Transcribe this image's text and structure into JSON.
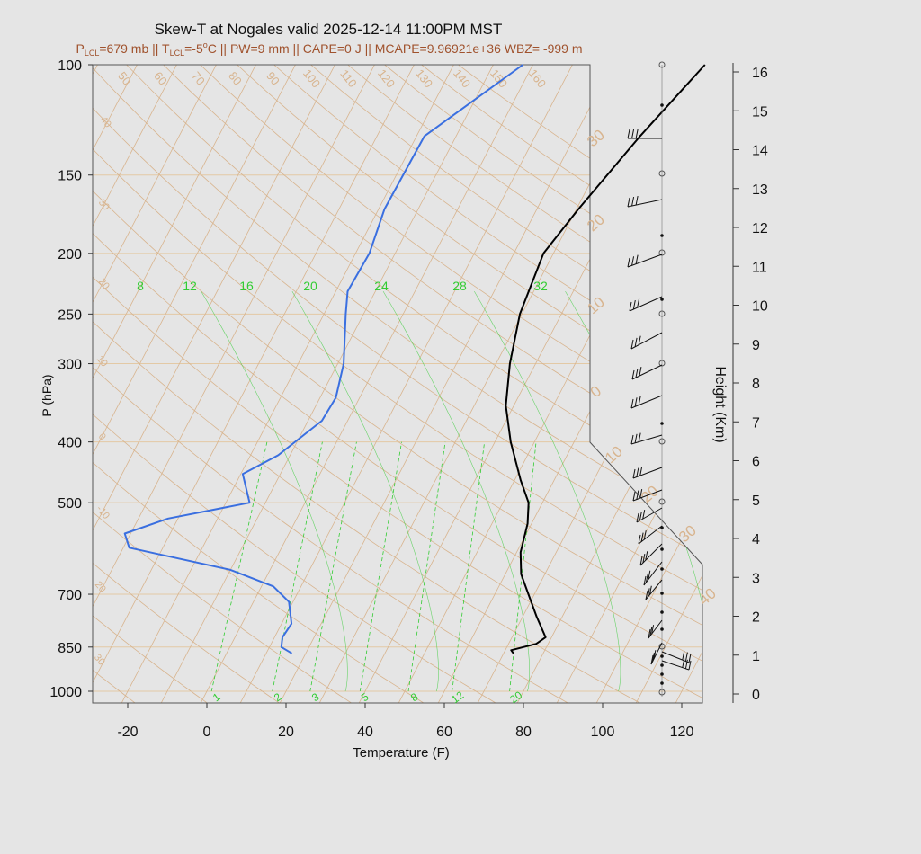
{
  "title": "Skew-T at Nogales valid 2025-12-14 11:00PM MST",
  "subtitle": {
    "lcl_p_label": "P",
    "lcl_p_sub": "LCL",
    "lcl_p_value": "=679 mb",
    "sep1": " || ",
    "lcl_t_label": "T",
    "lcl_t_sub": "LCL",
    "lcl_t_pre": "=-5",
    "lcl_t_sup": "o",
    "lcl_t_post": "C",
    "rest": " || PW=9 mm || CAPE=0 J || MCAPE=9.96921e+36 WBZ= -999 m"
  },
  "colors": {
    "background": "#e5e5e5",
    "subtitle": "#a0522d",
    "temperature": "#000000",
    "dewpoint": "#3a6fe0",
    "mixing_ratio": "#33cc33",
    "isotherm": "#d8b48e",
    "isobar": "#e3c9a5",
    "dry_adiabat": "#d8b48e"
  },
  "chart_data": {
    "type": "line",
    "xlabel": "Temperature (F)",
    "ylabel": "P (hPa)",
    "y2label": "Height (Km)",
    "x_ticks": [
      "-20",
      "0",
      "20",
      "40",
      "60",
      "80",
      "100",
      "120"
    ],
    "p_ticks": [
      "100",
      "150",
      "200",
      "250",
      "300",
      "400",
      "500",
      "700",
      "850",
      "1000"
    ],
    "height_ticks": [
      "0",
      "1",
      "2",
      "3",
      "4",
      "5",
      "6",
      "7",
      "8",
      "9",
      "10",
      "11",
      "12",
      "13",
      "14",
      "15",
      "16"
    ],
    "isotherm_labels": [
      "50",
      "60",
      "70",
      "80",
      "90",
      "100",
      "110",
      "120",
      "130",
      "140",
      "150",
      "160"
    ],
    "adiabat_labels_left": [
      "40",
      "30",
      "20",
      "10",
      "0",
      "-10",
      "20",
      "30"
    ],
    "adiabat_labels_right": [
      "30",
      "20",
      "10",
      "0",
      "10",
      "20",
      "30",
      "40"
    ],
    "mixing_top_labels": [
      "8",
      "12",
      "16",
      "20",
      "24",
      "28",
      "32"
    ],
    "mixing_bottom_labels": [
      "1",
      "2",
      "3",
      "5",
      "8",
      "12",
      "20"
    ],
    "series": [
      {
        "name": "temperature",
        "points": [
          [
            100,
            43.5
          ],
          [
            130,
            36.5
          ],
          [
            170,
            30.5
          ],
          [
            200,
            27.5
          ],
          [
            250,
            29.5
          ],
          [
            300,
            33.5
          ],
          [
            350,
            38
          ],
          [
            400,
            44
          ],
          [
            460,
            51.5
          ],
          [
            500,
            56.5
          ],
          [
            540,
            59
          ],
          [
            600,
            61
          ],
          [
            650,
            64
          ],
          [
            700,
            68.5
          ],
          [
            760,
            73.5
          ],
          [
            820,
            78.5
          ],
          [
            840,
            77
          ],
          [
            860,
            71.5
          ],
          [
            870,
            72.5
          ]
        ]
      },
      {
        "name": "dewpoint",
        "points": [
          [
            100,
            -2.5
          ],
          [
            130,
            -18
          ],
          [
            170,
            -18.5
          ],
          [
            200,
            -16.5
          ],
          [
            230,
            -17
          ],
          [
            250,
            -14.5
          ],
          [
            300,
            -8.5
          ],
          [
            340,
            -6
          ],
          [
            370,
            -6.5
          ],
          [
            420,
            -13
          ],
          [
            450,
            -19.5
          ],
          [
            500,
            -14
          ],
          [
            530,
            -32.5
          ],
          [
            560,
            -41.5
          ],
          [
            590,
            -38.5
          ],
          [
            640,
            -10
          ],
          [
            680,
            3
          ],
          [
            720,
            9
          ],
          [
            780,
            12.5
          ],
          [
            820,
            12
          ],
          [
            850,
            13
          ],
          [
            870,
            16.5
          ]
        ]
      }
    ]
  }
}
